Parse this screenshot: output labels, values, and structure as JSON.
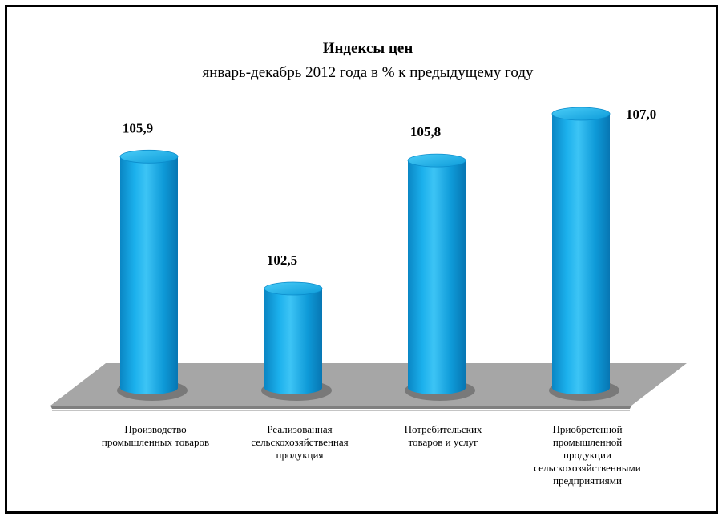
{
  "chart_data": {
    "type": "bar",
    "title": "Индексы цен",
    "subtitle": "январь-декабрь 2012 года в % к предыдущему году",
    "categories": [
      [
        "Производство",
        "промышленных товаров"
      ],
      [
        "Реализованная",
        "сельскохозяйственная",
        "продукция"
      ],
      [
        "Потребительских",
        "товаров и услуг"
      ],
      [
        "Приобретенной",
        "промышленной",
        "продукции",
        "сельскохозяйственными",
        "предприятиями"
      ]
    ],
    "values": [
      105.9,
      102.5,
      105.8,
      107.0
    ],
    "value_labels": [
      "105,9",
      "102,5",
      "105,8",
      "107,0"
    ],
    "bar_color": "#0FA2E0",
    "floor_color": "#A6A6A6",
    "grid": false,
    "legend": "none"
  }
}
